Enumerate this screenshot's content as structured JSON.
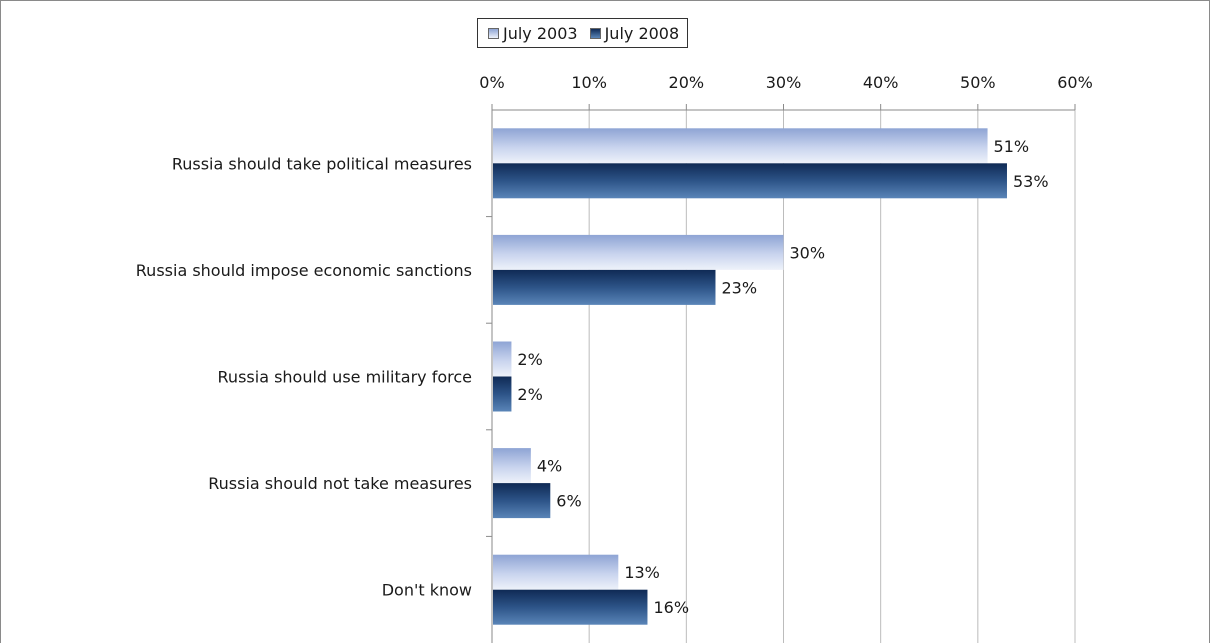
{
  "chart_data": {
    "type": "bar",
    "orientation": "horizontal",
    "categories": [
      "Russia should take political measures",
      "Russia should impose economic sanctions",
      "Russia should use military force",
      "Russia should not take measures",
      "Don't know"
    ],
    "series": [
      {
        "name": "July 2003",
        "values": [
          51,
          30,
          2,
          4,
          13
        ],
        "labels": [
          "51%",
          "30%",
          "2%",
          "4%",
          "13%"
        ],
        "color": "#aabbe0"
      },
      {
        "name": "July 2008",
        "values": [
          53,
          23,
          2,
          6,
          16
        ],
        "labels": [
          "53%",
          "23%",
          "2%",
          "6%",
          "16%"
        ],
        "color": "#1f3f6e"
      }
    ],
    "xlim": [
      0,
      60
    ],
    "ticks": [
      0,
      10,
      20,
      30,
      40,
      50,
      60
    ],
    "tick_labels": [
      "0%",
      "10%",
      "20%",
      "30%",
      "40%",
      "50%",
      "60%"
    ],
    "grid": true,
    "legend": "top",
    "xlabel": "",
    "ylabel": ""
  }
}
